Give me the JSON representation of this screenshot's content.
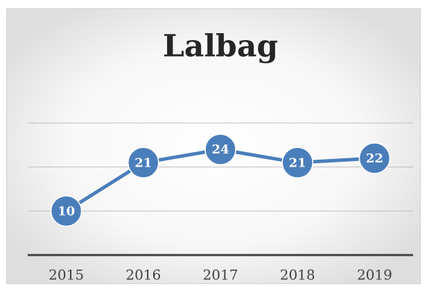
{
  "chart_data": {
    "type": "line",
    "title": "Lalbag",
    "categories": [
      "2015",
      "2016",
      "2017",
      "2018",
      "2019"
    ],
    "values": [
      10,
      21,
      24,
      21,
      22
    ],
    "color": "#4a7ebb",
    "ylim": [
      0,
      30
    ],
    "yticks": [
      10,
      20,
      30
    ],
    "show_ytick_labels": false,
    "grid": true,
    "data_labels": true
  }
}
